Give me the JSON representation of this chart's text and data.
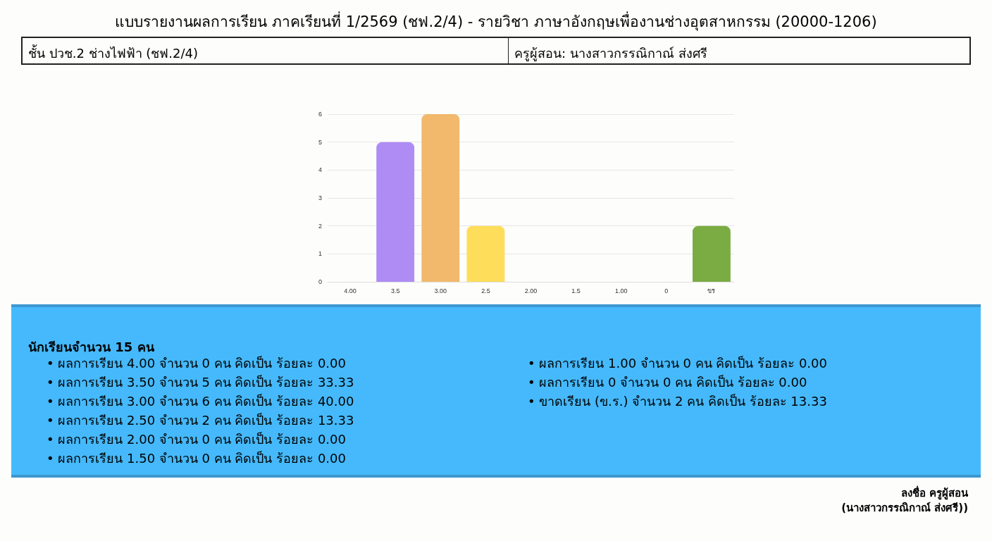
{
  "chart_data": {
    "type": "bar",
    "title": "แบบรายงานผลการเรียน ภาคเรียนที่ 1/2569 (ชฟ.2/4) - รายวิชา ภาษาอังกฤษเพื่องานช่างอุตสาหกรรม (20000-1206)",
    "categories": [
      "4.00",
      "3.5",
      "3.00",
      "2.5",
      "2.00",
      "1.5",
      "1.00",
      "0",
      "ขร"
    ],
    "values": [
      0,
      5,
      6,
      2,
      0,
      0,
      0,
      0,
      2
    ],
    "colors": [
      null,
      "#ae8cf4",
      "#f2b86c",
      "#fedd5a",
      null,
      null,
      null,
      null,
      "#7aac43"
    ],
    "ylim": [
      0,
      6
    ],
    "yticks": [
      0,
      1,
      2,
      3,
      4,
      5,
      6
    ],
    "grid": "y",
    "annotations": [
      "ชั้น ปวช.2 ช่างไฟฟ้า  (ชฟ.2/4)",
      "ครูผู้สอน: นางสาวกรรณิกาณ์ ส่งศรี",
      "นักเรียนจำนวน 15 คน",
      "• ผลการเรียน 4.00 จำนวน 0 คน คิดเป็น ร้อยละ 0.00",
      "• ผลการเรียน 3.50 จำนวน 5 คน คิดเป็น ร้อยละ 33.33",
      "• ผลการเรียน 3.00 จำนวน 6 คน คิดเป็น ร้อยละ 40.00",
      "• ผลการเรียน 2.50 จำนวน 2 คน คิดเป็น ร้อยละ 13.33",
      "• ผลการเรียน 2.00 จำนวน 0 คน คิดเป็น ร้อยละ 0.00",
      "• ผลการเรียน 1.50 จำนวน 0 คน คิดเป็น ร้อยละ 0.00",
      "• ผลการเรียน 1.00 จำนวน 0 คน คิดเป็น ร้อยละ 0.00",
      "• ผลการเรียน 0 จำนวน 0 คน คิดเป็น ร้อยละ 0.00",
      "• ขาดเรียน (ข.ร.) จำนวน 2 คน คิดเป็น ร้อยละ 13.33",
      "ลงชื่อ ครูผู้สอน",
      "(นางสาวกรรณิกาณ์ ส่งศรี))"
    ]
  }
}
